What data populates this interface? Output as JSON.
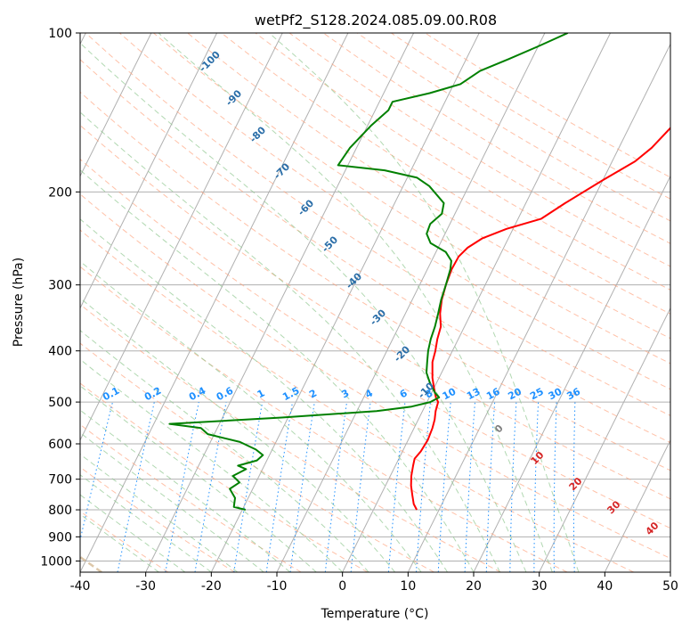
{
  "chart_data": {
    "type": "line",
    "title": "wetPf2_S128.2024.085.09.00.R08",
    "xlabel": "Temperature (°C)",
    "ylabel": "Pressure (hPa)",
    "xlim": [
      -40,
      50
    ],
    "ylim": [
      1050,
      100
    ],
    "y_scale": "log",
    "x_ticks": [
      -40,
      -30,
      -20,
      -10,
      0,
      10,
      20,
      30,
      40,
      50
    ],
    "y_ticks": [
      100,
      200,
      300,
      400,
      500,
      600,
      700,
      800,
      900,
      1000
    ],
    "grid": true,
    "colors": {
      "temperature": "#ff0000",
      "dewpoint": "#008000",
      "isotherm": "#b0b0b0",
      "dry_adiabat": "#ffa07a",
      "moist_adiabat": "#90c890",
      "mixing_ratio": "#1e90ff",
      "moist_label": "#2b6ea8",
      "dry_label": "#d62728",
      "tan_curve": "#d2b48c"
    },
    "series": [
      {
        "key": "temperature",
        "points": [
          {
            "p": 800,
            "t": 6.6
          },
          {
            "p": 780,
            "t": 5.7
          },
          {
            "p": 750,
            "t": 4.8
          },
          {
            "p": 720,
            "t": 3.9
          },
          {
            "p": 690,
            "t": 3.2
          },
          {
            "p": 660,
            "t": 2.7
          },
          {
            "p": 640,
            "t": 2.4
          },
          {
            "p": 620,
            "t": 2.8
          },
          {
            "p": 590,
            "t": 3.0
          },
          {
            "p": 560,
            "t": 2.8
          },
          {
            "p": 540,
            "t": 2.5
          },
          {
            "p": 520,
            "t": 2.0
          },
          {
            "p": 500,
            "t": 1.7
          },
          {
            "p": 490,
            "t": 1.0
          },
          {
            "p": 470,
            "t": 0.0
          },
          {
            "p": 450,
            "t": -1.0
          },
          {
            "p": 420,
            "t": -2.2
          },
          {
            "p": 400,
            "t": -2.6
          },
          {
            "p": 380,
            "t": -3.2
          },
          {
            "p": 360,
            "t": -3.6
          },
          {
            "p": 340,
            "t": -4.7
          },
          {
            "p": 320,
            "t": -5.5
          },
          {
            "p": 300,
            "t": -6.0
          },
          {
            "p": 280,
            "t": -6.3
          },
          {
            "p": 265,
            "t": -6.2
          },
          {
            "p": 255,
            "t": -5.5
          },
          {
            "p": 245,
            "t": -4.0
          },
          {
            "p": 235,
            "t": -1.0
          },
          {
            "p": 225,
            "t": 3.5
          },
          {
            "p": 210,
            "t": 6.0
          },
          {
            "p": 190,
            "t": 10.0
          },
          {
            "p": 175,
            "t": 13.5
          },
          {
            "p": 165,
            "t": 15.0
          },
          {
            "p": 150,
            "t": 16.5
          },
          {
            "p": 140,
            "t": 17.5
          },
          {
            "p": 130,
            "t": 19.3
          },
          {
            "p": 120,
            "t": 22.0
          },
          {
            "p": 110,
            "t": 24.3
          },
          {
            "p": 100,
            "t": 25.3
          }
        ]
      },
      {
        "key": "dewpoint",
        "points": [
          {
            "p": 800,
            "t": -19.5
          },
          {
            "p": 790,
            "t": -21.5
          },
          {
            "p": 760,
            "t": -22.0
          },
          {
            "p": 730,
            "t": -23.5
          },
          {
            "p": 710,
            "t": -22.5
          },
          {
            "p": 690,
            "t": -24.0
          },
          {
            "p": 670,
            "t": -22.5
          },
          {
            "p": 660,
            "t": -24.0
          },
          {
            "p": 645,
            "t": -21.5
          },
          {
            "p": 630,
            "t": -21.0
          },
          {
            "p": 615,
            "t": -22.5
          },
          {
            "p": 595,
            "t": -25.5
          },
          {
            "p": 575,
            "t": -31.0
          },
          {
            "p": 560,
            "t": -32.5
          },
          {
            "p": 550,
            "t": -37.6
          },
          {
            "p": 535,
            "t": -21.0
          },
          {
            "p": 520,
            "t": -7.0
          },
          {
            "p": 510,
            "t": -2.0
          },
          {
            "p": 500,
            "t": 0.5
          },
          {
            "p": 490,
            "t": 1.5
          },
          {
            "p": 480,
            "t": 0.5
          },
          {
            "p": 460,
            "t": -1.0
          },
          {
            "p": 440,
            "t": -2.3
          },
          {
            "p": 420,
            "t": -3.0
          },
          {
            "p": 400,
            "t": -3.7
          },
          {
            "p": 380,
            "t": -4.2
          },
          {
            "p": 360,
            "t": -4.5
          },
          {
            "p": 340,
            "t": -5.0
          },
          {
            "p": 320,
            "t": -5.6
          },
          {
            "p": 300,
            "t": -6.0
          },
          {
            "p": 280,
            "t": -6.5
          },
          {
            "p": 270,
            "t": -7.0
          },
          {
            "p": 260,
            "t": -8.5
          },
          {
            "p": 250,
            "t": -11.5
          },
          {
            "p": 240,
            "t": -12.8
          },
          {
            "p": 230,
            "t": -13.0
          },
          {
            "p": 220,
            "t": -12.0
          },
          {
            "p": 210,
            "t": -12.5
          },
          {
            "p": 195,
            "t": -16.0
          },
          {
            "p": 188,
            "t": -18.5
          },
          {
            "p": 182,
            "t": -24.0
          },
          {
            "p": 178,
            "t": -31.5
          },
          {
            "p": 165,
            "t": -31.0
          },
          {
            "p": 150,
            "t": -29.5
          },
          {
            "p": 140,
            "t": -28.0
          },
          {
            "p": 135,
            "t": -28.0
          },
          {
            "p": 130,
            "t": -23.0
          },
          {
            "p": 125,
            "t": -19.0
          },
          {
            "p": 118,
            "t": -17.0
          },
          {
            "p": 112,
            "t": -13.5
          },
          {
            "p": 106,
            "t": -10.0
          },
          {
            "p": 100,
            "t": -6.5
          }
        ]
      }
    ],
    "isotherm_skew_deg_per_decade": 40,
    "moist_adiabat_labels": [
      "-100",
      "-90",
      "-80",
      "-70",
      "-60",
      "-50",
      "-40",
      "-30",
      "-20",
      "-10"
    ],
    "mixing_ratio_labels": [
      "0.1",
      "0.2",
      "0.4",
      "0.6",
      "1",
      "1.5",
      "2",
      "3",
      "4",
      "6",
      "8",
      "10",
      "13",
      "16",
      "20",
      "25",
      "30",
      "36"
    ],
    "dry_adiabat_labels": [
      "0",
      "10",
      "20",
      "30",
      "40"
    ]
  }
}
